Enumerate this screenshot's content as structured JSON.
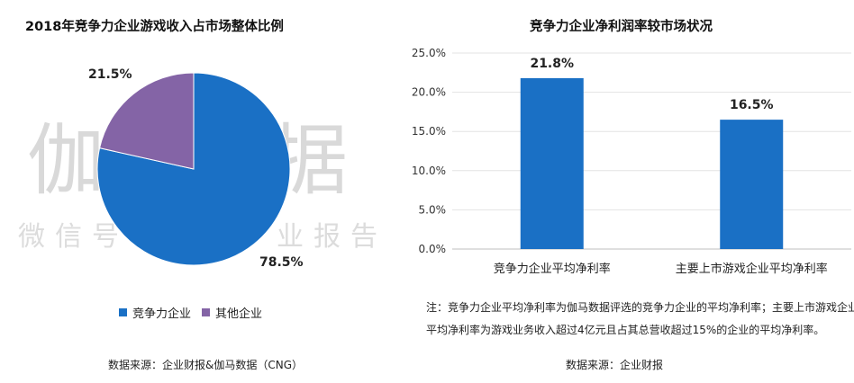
{
  "watermark": {
    "main": "伽马数据",
    "sub": "微信号：游戏产业报告"
  },
  "chart_data": [
    {
      "type": "pie",
      "title": "2018年竞争力企业游戏收入占市场整体比例",
      "slices": [
        {
          "name": "竞争力企业",
          "value": 78.5,
          "label": "78.5%",
          "color": "#1a70c5"
        },
        {
          "name": "其他企业",
          "value": 21.5,
          "label": "21.5%",
          "color": "#8464a6"
        }
      ],
      "legend_position": "bottom",
      "source": "数据来源：企业财报&伽马数据（CNG）"
    },
    {
      "type": "bar",
      "title": "竞争力企业净利润率较市场状况",
      "categories": [
        "竞争力企业平均净利率",
        "主要上市游戏企业平均净利率"
      ],
      "values": [
        21.8,
        16.5
      ],
      "value_labels": [
        "21.8%",
        "16.5%"
      ],
      "color": "#1a70c5",
      "ylim": [
        0,
        25
      ],
      "yticks": [
        "0.0%",
        "5.0%",
        "10.0%",
        "15.0%",
        "20.0%",
        "25.0%"
      ],
      "grid": true,
      "note": "注：竞争力企业平均净利率为伽马数据评选的竞争力企业的平均净利率；主要上市游戏企业平均净利率为游戏业务收入超过4亿元且占其总营收超过15%的企业的平均净利率。",
      "source": "数据来源：企业财报"
    }
  ]
}
